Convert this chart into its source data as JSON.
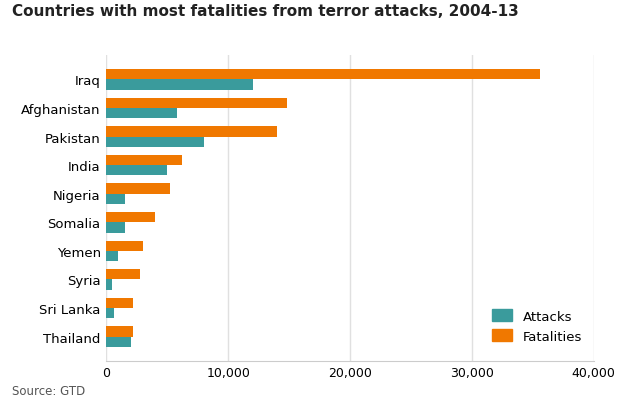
{
  "title": "Countries with most fatalities from terror attacks, 2004-13",
  "source": "Source: GTD",
  "countries": [
    "Iraq",
    "Afghanistan",
    "Pakistan",
    "India",
    "Nigeria",
    "Somalia",
    "Yemen",
    "Syria",
    "Sri Lanka",
    "Thailand"
  ],
  "attacks": [
    12000,
    5800,
    8000,
    5000,
    1500,
    1500,
    1000,
    500,
    600,
    2000
  ],
  "fatalities": [
    35600,
    14800,
    14000,
    6200,
    5200,
    4000,
    3000,
    2800,
    2200,
    2200
  ],
  "attacks_color": "#3a9b9c",
  "fatalities_color": "#f07800",
  "bg_color": "#ffffff",
  "grid_color": "#e0e0e0",
  "xlim": [
    0,
    40000
  ],
  "xticks": [
    0,
    10000,
    20000,
    30000,
    40000
  ],
  "xtick_labels": [
    "0",
    "10,000",
    "20,000",
    "30,000",
    "40,000"
  ],
  "title_fontsize": 11,
  "label_fontsize": 9.5,
  "tick_fontsize": 9,
  "source_fontsize": 8.5,
  "bar_height": 0.36
}
